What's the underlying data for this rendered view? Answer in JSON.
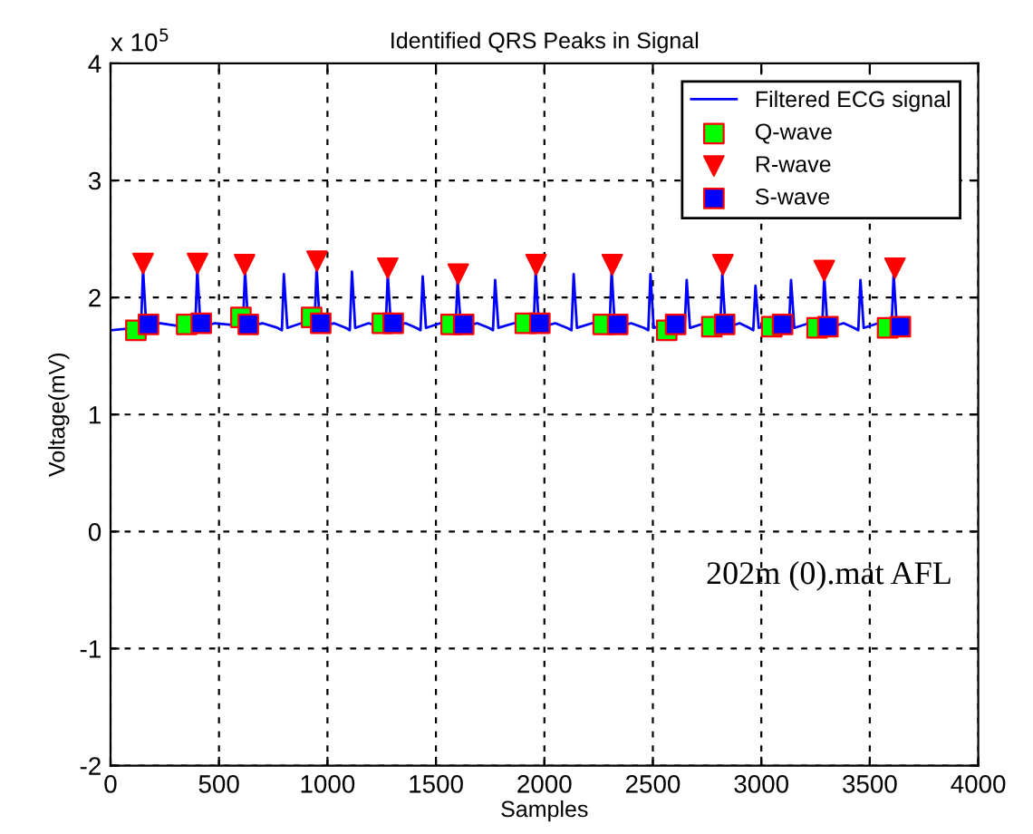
{
  "chart_data": {
    "type": "line",
    "title": "Identified QRS Peaks in Signal",
    "xlabel": "Samples",
    "ylabel": "Voltage(mV)",
    "annotations": [
      "x 10$^{5}$",
      "202m (0).mat AFL"
    ],
    "xlim": [
      0,
      4000
    ],
    "xticks": [
      0,
      500,
      1000,
      1500,
      2000,
      2500,
      3000,
      3500,
      4000
    ],
    "ylim": [
      -2,
      4
    ],
    "yticks": [
      -2,
      -1,
      0,
      1,
      2,
      3,
      4
    ],
    "grid": true,
    "legend": "top right",
    "series": [
      {
        "name": "Filtered ECG signal",
        "color": "#0000ff",
        "marker": "none",
        "line_style": "solid",
        "x": [
          0,
          120,
          140,
          150,
          165,
          230,
          370,
          390,
          400,
          415,
          480,
          590,
          610,
          620,
          635,
          700,
          770,
          790,
          799,
          815,
          880,
          920,
          940,
          950,
          965,
          1030,
          1085,
          1103,
          1113,
          1128,
          1190,
          1250,
          1268,
          1278,
          1293,
          1360,
          1410,
          1429,
          1439,
          1454,
          1520,
          1570,
          1590,
          1600,
          1615,
          1690,
          1745,
          1763,
          1773,
          1788,
          1860,
          1930,
          1950,
          1960,
          1975,
          2050,
          2105,
          2125,
          2135,
          2150,
          2220,
          2280,
          2300,
          2310,
          2325,
          2400,
          2460,
          2479,
          2489,
          2504,
          2580,
          2628,
          2646,
          2656,
          2671,
          2740,
          2790,
          2810,
          2820,
          2835,
          2900,
          2945,
          2963,
          2973,
          2988,
          3060,
          3108,
          3127,
          3137,
          3152,
          3220,
          3260,
          3280,
          3290,
          3305,
          3380,
          3428,
          3447,
          3457,
          3472,
          3540,
          3580,
          3600,
          3610,
          3625,
          3650
        ],
        "values": [
          1.72,
          1.74,
          1.72,
          2.24,
          1.74,
          1.78,
          1.74,
          1.72,
          2.24,
          1.74,
          1.78,
          1.76,
          1.74,
          2.23,
          1.75,
          1.78,
          1.74,
          1.72,
          2.2,
          1.74,
          1.78,
          1.76,
          1.74,
          2.26,
          1.75,
          1.78,
          1.74,
          1.72,
          2.22,
          1.74,
          1.78,
          1.74,
          1.72,
          2.2,
          1.74,
          1.78,
          1.74,
          1.72,
          2.18,
          1.74,
          1.78,
          1.74,
          1.72,
          2.15,
          1.74,
          1.78,
          1.74,
          1.72,
          2.15,
          1.74,
          1.78,
          1.74,
          1.72,
          2.23,
          1.74,
          1.78,
          1.74,
          1.72,
          2.2,
          1.74,
          1.78,
          1.74,
          1.72,
          2.23,
          1.74,
          1.78,
          1.74,
          1.72,
          2.2,
          1.74,
          1.78,
          1.74,
          1.72,
          2.15,
          1.74,
          1.78,
          1.74,
          1.72,
          2.2,
          1.74,
          1.78,
          1.74,
          1.72,
          2.1,
          1.74,
          1.78,
          1.74,
          1.72,
          2.15,
          1.74,
          1.78,
          1.74,
          1.72,
          2.18,
          1.74,
          1.78,
          1.74,
          1.72,
          2.15,
          1.74,
          1.78,
          1.74,
          1.72,
          2.2,
          1.74,
          1.75
        ]
      },
      {
        "name": "Q-wave",
        "type": "scatter",
        "color": "#00ff00",
        "marker": "square",
        "x": [
          117,
          351,
          601,
          927,
          1253,
          1570,
          1912,
          2271,
          2564,
          2772,
          3048,
          3257,
          3582
        ],
        "values": [
          1.72,
          1.77,
          1.83,
          1.83,
          1.78,
          1.77,
          1.78,
          1.77,
          1.72,
          1.75,
          1.75,
          1.74,
          1.74
        ]
      },
      {
        "name": "R-wave",
        "type": "scatter",
        "color": "#ff0000",
        "marker": "triangle",
        "x": [
          150,
          401,
          618,
          952,
          1278,
          1603,
          1962,
          2313,
          2823,
          3290,
          3616
        ],
        "values": [
          2.29,
          2.29,
          2.28,
          2.31,
          2.25,
          2.2,
          2.28,
          2.28,
          2.28,
          2.23,
          2.25
        ]
      },
      {
        "name": "S-wave",
        "type": "scatter",
        "color": "#0000ff",
        "marker": "square",
        "x": [
          175,
          418,
          635,
          969,
          1303,
          1628,
          1979,
          2338,
          2605,
          2831,
          3098,
          3307,
          3641
        ],
        "values": [
          1.77,
          1.78,
          1.77,
          1.78,
          1.78,
          1.77,
          1.78,
          1.77,
          1.77,
          1.77,
          1.77,
          1.75,
          1.75
        ]
      }
    ]
  }
}
